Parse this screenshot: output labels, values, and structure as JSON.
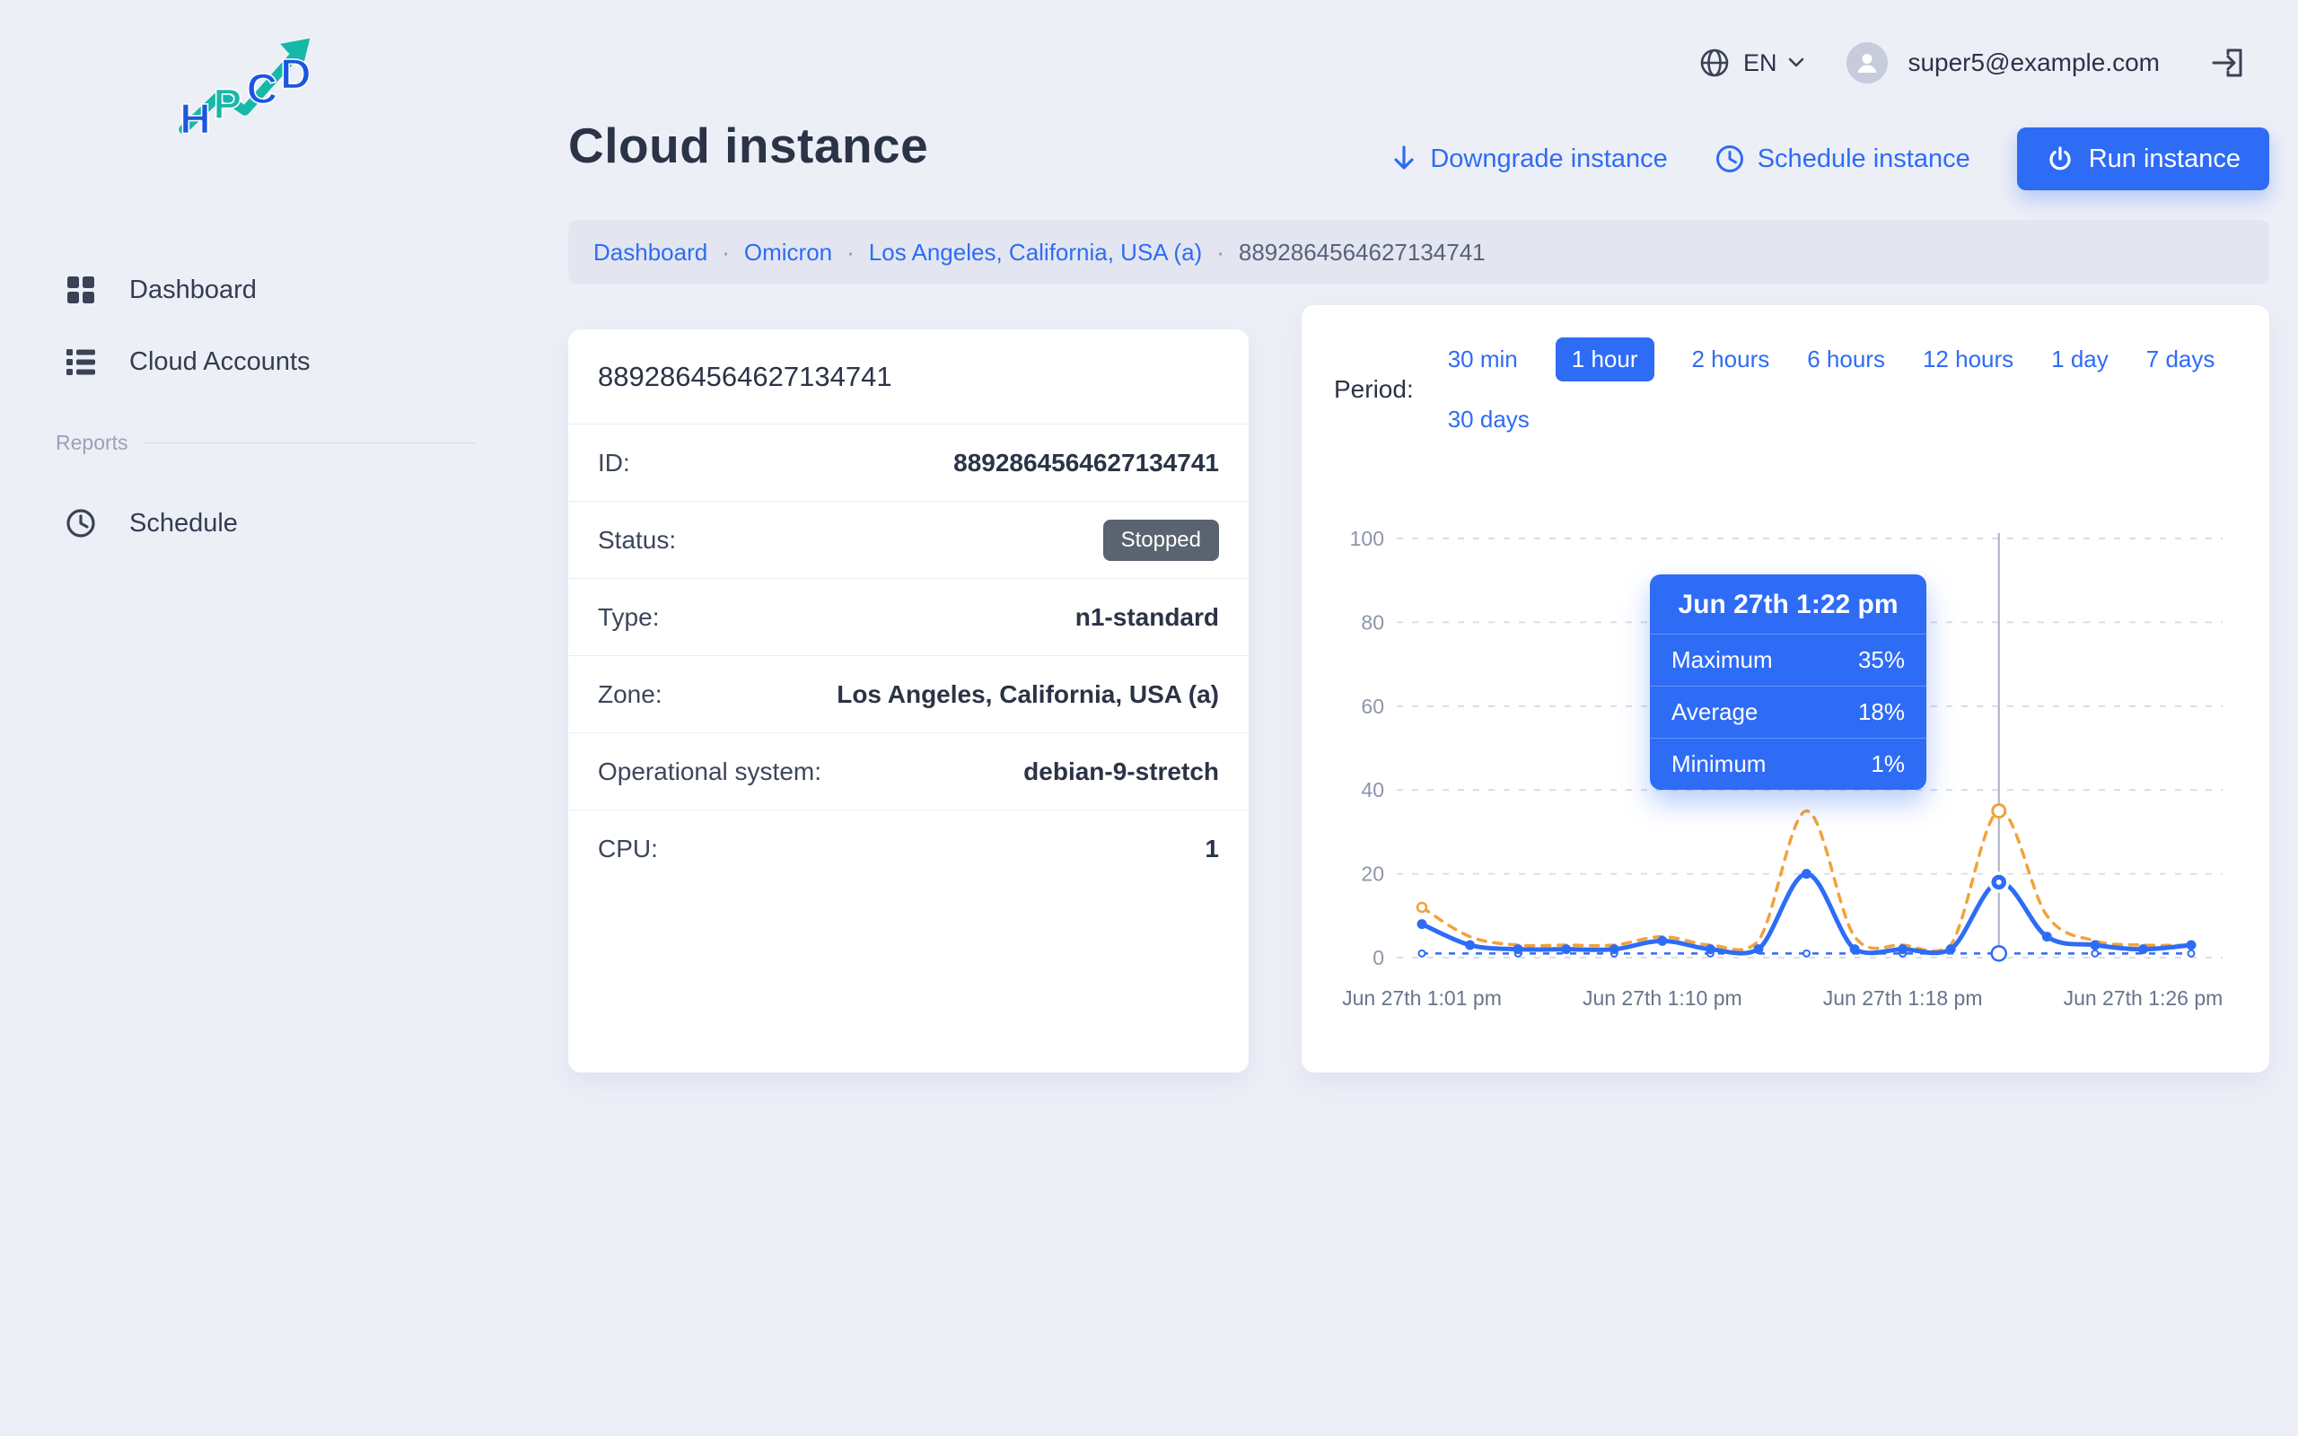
{
  "header": {
    "language": "EN",
    "user_email": "super5@example.com"
  },
  "sidebar": {
    "logo_chars": [
      "H",
      "P",
      "C",
      "D"
    ],
    "items": [
      {
        "label": "Dashboard"
      },
      {
        "label": "Cloud Accounts"
      }
    ],
    "section_label": "Reports",
    "section_items": [
      {
        "label": "Schedule"
      }
    ]
  },
  "page": {
    "title": "Cloud instance",
    "actions": {
      "downgrade": "Downgrade instance",
      "schedule": "Schedule instance",
      "run": "Run instance"
    },
    "breadcrumb_separator": "·",
    "breadcrumbs": [
      "Dashboard",
      "Omicron",
      "Los Angeles, California, USA (a)",
      "8892864564627134741"
    ]
  },
  "instance": {
    "title": "8892864564627134741",
    "rows": [
      {
        "label": "ID:",
        "value": "8892864564627134741",
        "type": "text"
      },
      {
        "label": "Status:",
        "value": "Stopped",
        "type": "badge"
      },
      {
        "label": "Type:",
        "value": "n1-standard",
        "type": "text"
      },
      {
        "label": "Zone:",
        "value": "Los Angeles, California, USA (a)",
        "type": "text"
      },
      {
        "label": "Operational system:",
        "value": "debian-9-stretch",
        "type": "text"
      },
      {
        "label": "CPU:",
        "value": "1",
        "type": "text"
      }
    ]
  },
  "monitor": {
    "period_label": "Period:",
    "periods": [
      "30 min",
      "1 hour",
      "2 hours",
      "6 hours",
      "12 hours",
      "1 day",
      "7 days",
      "30 days"
    ],
    "selected_period": "1 hour",
    "tooltip": {
      "title": "Jun 27th 1:22 pm",
      "rows": [
        {
          "label": "Maximum",
          "value": "35%"
        },
        {
          "label": "Average",
          "value": "18%"
        },
        {
          "label": "Minimum",
          "value": "1%"
        }
      ]
    }
  },
  "chart_data": {
    "type": "line",
    "title": "",
    "x_tick_labels": [
      "Jun 27th 1:01 pm",
      "Jun 27th 1:10 pm",
      "Jun 27th 1:18 pm",
      "Jun 27th 1:26 pm"
    ],
    "x_tick_indices": [
      0,
      5,
      10,
      15
    ],
    "num_points": 17,
    "cursor_index": 12,
    "ylim": [
      0,
      100
    ],
    "yticks": [
      0,
      20,
      40,
      60,
      80,
      100
    ],
    "grid": true,
    "legend": "none",
    "series": [
      {
        "name": "Maximum",
        "color": "#f2a23b",
        "style": "dashed",
        "values": [
          12,
          5,
          3,
          3,
          3,
          5,
          3,
          4,
          35,
          5,
          3,
          3,
          35,
          10,
          4,
          3,
          3
        ]
      },
      {
        "name": "Average",
        "color": "#2e6cf6",
        "style": "solid",
        "values": [
          8,
          3,
          2,
          2,
          2,
          4,
          2,
          2,
          20,
          2,
          2,
          2,
          18,
          5,
          3,
          2,
          3
        ]
      },
      {
        "name": "Minimum",
        "color": "#2e6cf6",
        "style": "dashed",
        "values": [
          1,
          1,
          1,
          1,
          1,
          1,
          1,
          1,
          1,
          1,
          1,
          1,
          1,
          1,
          1,
          1,
          1
        ]
      }
    ]
  },
  "colors": {
    "background": "#edeff7",
    "accent_blue": "#2e6cf6",
    "maximum_orange": "#f2a23b",
    "badge_gray": "#5a6370",
    "logo_teal": "#16b8a8",
    "logo_blue": "#1d55e0"
  },
  "icons": {
    "sidebar": [
      "dashboard-grid-icon",
      "accounts-list-icon",
      "clock-icon"
    ],
    "topbar": [
      "globe-icon",
      "chevron-down-icon",
      "avatar-icon",
      "logout-icon"
    ],
    "actions": [
      "arrow-down-icon",
      "clock-icon",
      "power-icon"
    ]
  }
}
